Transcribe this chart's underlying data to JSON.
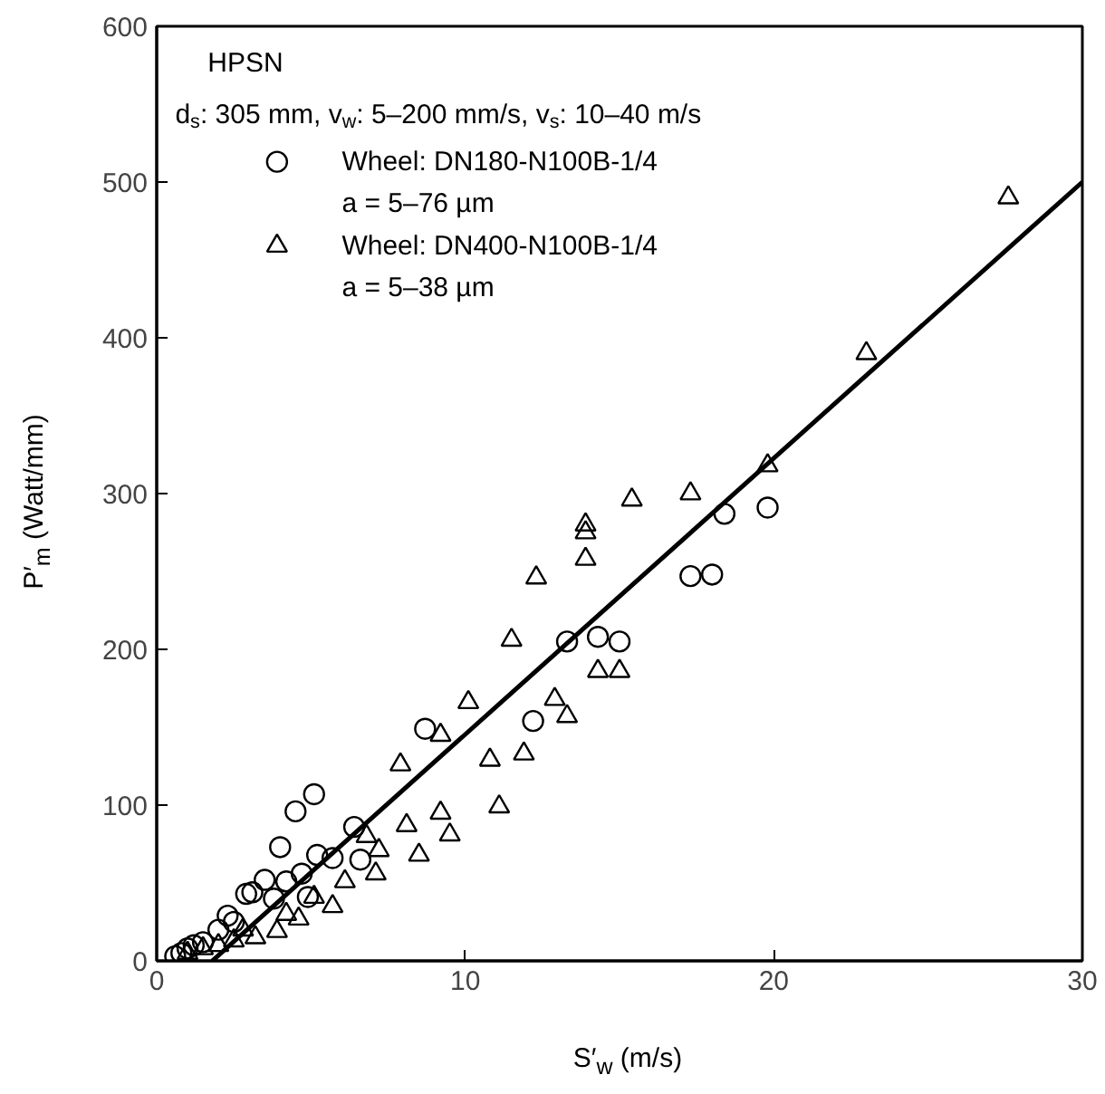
{
  "chart_data": {
    "type": "scatter",
    "title": "HPSN",
    "subtitle": "d$_{s}$: 305 mm, v$_{w}$: 5–200 mm/s, v$_{s}$: 10–40 m/s",
    "xlabel": "S′$_{w}$ (m/s)",
    "ylabel": "P′$_{m}$ (Watt/mm)",
    "xlim": [
      0,
      30
    ],
    "ylim": [
      0,
      600
    ],
    "xticks": [
      0,
      10,
      20,
      30
    ],
    "yticks": [
      0,
      100,
      200,
      300,
      400,
      500,
      600
    ],
    "grid": false,
    "legend": "top left",
    "series": [
      {
        "name": "Wheel: DN180-N100B-1/4\na = 5–76 µm",
        "color": "#000000",
        "marker": "circle",
        "x": [
          0.6,
          0.8,
          1.0,
          1.2,
          1.5,
          2.0,
          2.3,
          2.5,
          2.9,
          3.1,
          3.5,
          3.8,
          4.0,
          4.2,
          4.5,
          4.7,
          4.9,
          5.1,
          5.2,
          5.7,
          6.4,
          6.6,
          8.7,
          12.2,
          13.3,
          14.3,
          15.0,
          17.3,
          18.0,
          18.4,
          19.8
        ],
        "values": [
          3,
          5,
          8,
          10,
          12,
          20,
          29,
          25,
          43,
          44,
          52,
          40,
          73,
          51,
          96,
          56,
          41,
          107,
          68,
          66,
          86,
          65,
          149,
          154,
          205,
          208,
          205,
          247,
          248,
          287,
          291
        ]
      },
      {
        "name": "Wheel: DN400-N100B-1/4\na = 5–38 µm",
        "color": "#000000",
        "marker": "triangle",
        "x": [
          1.0,
          1.5,
          2.0,
          2.5,
          2.8,
          3.2,
          3.9,
          4.2,
          4.6,
          5.1,
          5.7,
          6.1,
          6.8,
          7.1,
          7.2,
          7.9,
          8.1,
          8.5,
          9.2,
          9.2,
          9.5,
          10.1,
          10.8,
          11.1,
          11.5,
          11.9,
          12.3,
          12.9,
          13.3,
          13.9,
          13.9,
          13.9,
          14.3,
          15.0,
          15.4,
          17.3,
          19.8,
          23.0,
          27.6
        ],
        "values": [
          5,
          8,
          10,
          13,
          20,
          15,
          19,
          30,
          27,
          41,
          35,
          51,
          80,
          56,
          71,
          126,
          87,
          68,
          145,
          95,
          81,
          166,
          129,
          99,
          206,
          133,
          246,
          168,
          157,
          280,
          275,
          258,
          186,
          186,
          296,
          300,
          318,
          390,
          490
        ]
      },
      {
        "type": "line",
        "color": "#000000",
        "marker": "none",
        "line_style": "solid",
        "x": [
          1.8,
          30
        ],
        "values": [
          0,
          500
        ]
      }
    ]
  }
}
